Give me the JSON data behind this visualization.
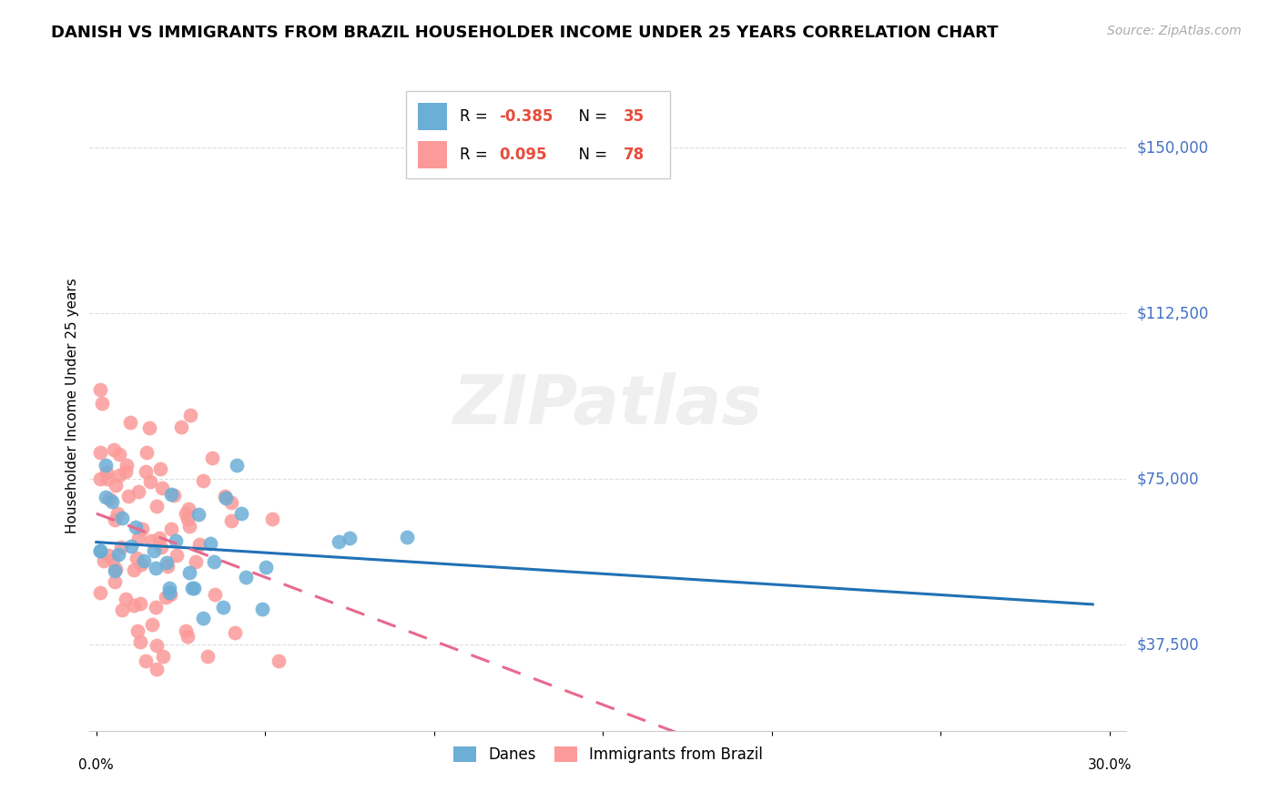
{
  "title": "DANISH VS IMMIGRANTS FROM BRAZIL HOUSEHOLDER INCOME UNDER 25 YEARS CORRELATION CHART",
  "source": "Source: ZipAtlas.com",
  "ylabel": "Householder Income Under 25 years",
  "ytick_labels": [
    "$150,000",
    "$112,500",
    "$75,000",
    "$37,500"
  ],
  "ytick_values": [
    150000,
    112500,
    75000,
    37500
  ],
  "ymin": 18000,
  "ymax": 165000,
  "xmin": -0.002,
  "xmax": 0.305,
  "danes_color": "#6baed6",
  "brazil_color": "#fb9a99",
  "danes_line_color": "#2171b5",
  "brazil_line_color": "#e8698d",
  "watermark": "ZIPatlas",
  "danes_R": -0.385,
  "danes_N": 35,
  "brazil_R": 0.095,
  "brazil_N": 78
}
